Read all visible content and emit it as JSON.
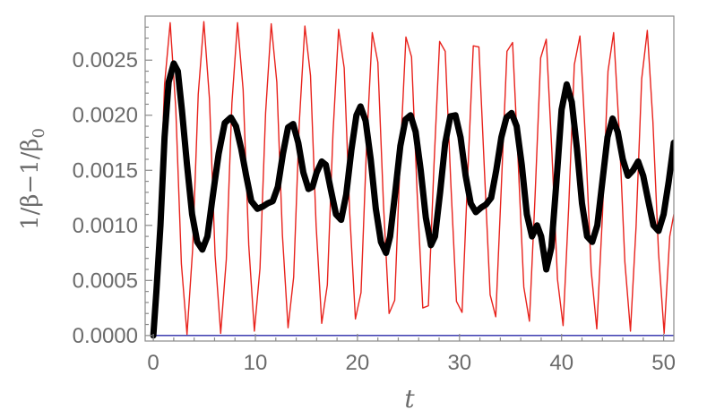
{
  "chart_data": {
    "type": "line",
    "title": "",
    "xlabel": "t",
    "ylabel": "1/β−1/β0",
    "ylabel_parts": {
      "main": "1/β−1/β",
      "subscript": "0"
    },
    "xlim": [
      -0.8,
      51
    ],
    "ylim": [
      -5e-05,
      0.0029
    ],
    "x_ticks": [
      0,
      10,
      20,
      30,
      40,
      50
    ],
    "x_tick_labels": [
      "0",
      "10",
      "20",
      "30",
      "40",
      "50"
    ],
    "y_ticks": [
      0,
      0.0005,
      0.001,
      0.0015,
      0.002,
      0.0025
    ],
    "y_tick_labels": [
      "0.0000",
      "0.0005",
      "0.0010",
      "0.0015",
      "0.0020",
      "0.0025"
    ],
    "grid": false,
    "legend": "none",
    "series": [
      {
        "color": "#e8221c",
        "x": [
          0,
          0.55,
          1.1,
          1.65,
          2.2,
          2.75,
          3.3,
          3.85,
          4.4,
          4.95,
          5.5,
          6.05,
          6.6,
          7.15,
          7.7,
          8.25,
          8.8,
          9.35,
          9.9,
          10.45,
          11,
          11.55,
          12.1,
          12.65,
          13.2,
          13.75,
          14.3,
          14.85,
          15.4,
          15.95,
          16.5,
          17.05,
          17.6,
          18.15,
          18.7,
          19.25,
          19.8,
          20.35,
          20.9,
          21.45,
          22,
          22.55,
          23.1,
          23.65,
          24.2,
          24.75,
          25.3,
          25.85,
          26.4,
          26.95,
          27.5,
          28.05,
          28.6,
          29.15,
          29.7,
          30.25,
          30.8,
          31.35,
          31.9,
          32.45,
          33,
          33.55,
          34.1,
          34.65,
          35.2,
          35.75,
          36.3,
          36.85,
          37.4,
          37.95,
          38.5,
          39.05,
          39.6,
          40.15,
          40.7,
          41.25,
          41.8,
          42.35,
          42.9,
          43.45,
          44,
          44.55,
          45.1,
          45.65,
          46.2,
          46.75,
          47.3,
          47.85,
          48.4,
          48.95,
          49.5,
          50.05,
          50.6,
          51
        ],
        "y": [
          0,
          0.00088,
          0.00228,
          0.00284,
          0.00206,
          0.00065,
          1e-05,
          0.00078,
          0.00219,
          0.00285,
          0.00215,
          0.00073,
          2e-05,
          0.00069,
          0.00211,
          0.00284,
          0.00223,
          0.00082,
          4e-05,
          0.00061,
          0.00202,
          0.00283,
          0.0023,
          0.00091,
          7e-05,
          0.00053,
          0.00193,
          0.00281,
          0.00236,
          0.001,
          0.00011,
          0.00046,
          0.00183,
          0.00278,
          0.00243,
          0.0011,
          0.00015,
          0.00039,
          0.00174,
          0.00275,
          0.00248,
          0.00119,
          0.0002,
          0.00032,
          0.00164,
          0.00271,
          0.00253,
          0.00129,
          0.00025,
          0.00027,
          0.00155,
          0.00267,
          0.00258,
          0.00138,
          0.00031,
          0.00021,
          0.00145,
          0.00263,
          0.00262,
          0.00148,
          0.00037,
          0.00017,
          0.00136,
          0.00258,
          0.00266,
          0.00157,
          0.00044,
          0.00013,
          0.00126,
          0.00252,
          0.00269,
          0.00167,
          0.00051,
          9e-05,
          0.00117,
          0.00246,
          0.00272,
          0.00176,
          0.00059,
          6e-05,
          0.00108,
          0.0024,
          0.00275,
          0.00185,
          0.00067,
          4e-05,
          0.00099,
          0.00233,
          0.00277,
          0.00194,
          0.00075,
          2e-05,
          0.0009,
          0.0011
        ]
      },
      {
        "color": "#000000",
        "x": [
          0,
          0.3,
          0.7,
          1.1,
          1.5,
          2.0,
          2.4,
          2.8,
          3.3,
          3.8,
          4.3,
          4.8,
          5.3,
          5.8,
          6.4,
          7.0,
          7.6,
          8.1,
          8.6,
          9.1,
          9.6,
          10.2,
          10.7,
          11.2,
          11.7,
          12.2,
          12.7,
          13.2,
          13.7,
          14.2,
          14.7,
          15.2,
          15.6,
          16.0,
          16.5,
          16.9,
          17.4,
          17.9,
          18.4,
          18.9,
          19.4,
          19.9,
          20.3,
          20.8,
          21.3,
          21.8,
          22.3,
          22.8,
          23.2,
          23.7,
          24.2,
          24.7,
          25.2,
          25.7,
          26.2,
          26.7,
          27.2,
          27.6,
          28.1,
          28.6,
          29.1,
          29.6,
          30.1,
          30.6,
          31.1,
          31.6,
          32.1,
          32.6,
          33.1,
          33.6,
          34.1,
          34.6,
          35.1,
          35.6,
          36.1,
          36.6,
          37.1,
          37.6,
          38.0,
          38.5,
          39.0,
          39.5,
          40.0,
          40.5,
          41.0,
          41.5,
          42.0,
          42.5,
          43.0,
          43.5,
          44.0,
          44.5,
          45.0,
          45.5,
          46.0,
          46.5,
          47.0,
          47.5,
          48.0,
          48.5,
          49.0,
          49.5,
          50.0,
          50.5,
          51.0
        ],
        "y": [
          0,
          0.0004,
          0.001,
          0.0018,
          0.0023,
          0.00247,
          0.0024,
          0.00205,
          0.00155,
          0.0011,
          0.00085,
          0.00078,
          0.0009,
          0.00125,
          0.00165,
          0.00193,
          0.00198,
          0.0019,
          0.0017,
          0.00145,
          0.00122,
          0.00115,
          0.00117,
          0.0012,
          0.00122,
          0.00135,
          0.00165,
          0.00189,
          0.00192,
          0.00175,
          0.00148,
          0.00133,
          0.00135,
          0.00148,
          0.00158,
          0.00155,
          0.00132,
          0.0011,
          0.00105,
          0.00128,
          0.00168,
          0.002,
          0.00208,
          0.00195,
          0.0016,
          0.00115,
          0.00085,
          0.00075,
          0.0009,
          0.0013,
          0.00172,
          0.00196,
          0.002,
          0.00185,
          0.0015,
          0.00107,
          0.00082,
          0.0009,
          0.0013,
          0.00175,
          0.00199,
          0.002,
          0.0018,
          0.00145,
          0.0012,
          0.00112,
          0.00116,
          0.00119,
          0.00125,
          0.0015,
          0.0018,
          0.00198,
          0.00202,
          0.0019,
          0.00155,
          0.0011,
          0.0009,
          0.001,
          0.0009,
          0.0006,
          0.0008,
          0.0014,
          0.00205,
          0.00228,
          0.00212,
          0.0017,
          0.0012,
          0.0009,
          0.00085,
          0.001,
          0.0014,
          0.0018,
          0.00197,
          0.00185,
          0.0016,
          0.00145,
          0.0015,
          0.00158,
          0.00145,
          0.00122,
          0.001,
          0.00095,
          0.0011,
          0.0014,
          0.00175
        ],
        "width": 7
      },
      {
        "color": "#2a2aa8",
        "x": [
          0,
          51
        ],
        "y": [
          0,
          0
        ]
      }
    ]
  }
}
